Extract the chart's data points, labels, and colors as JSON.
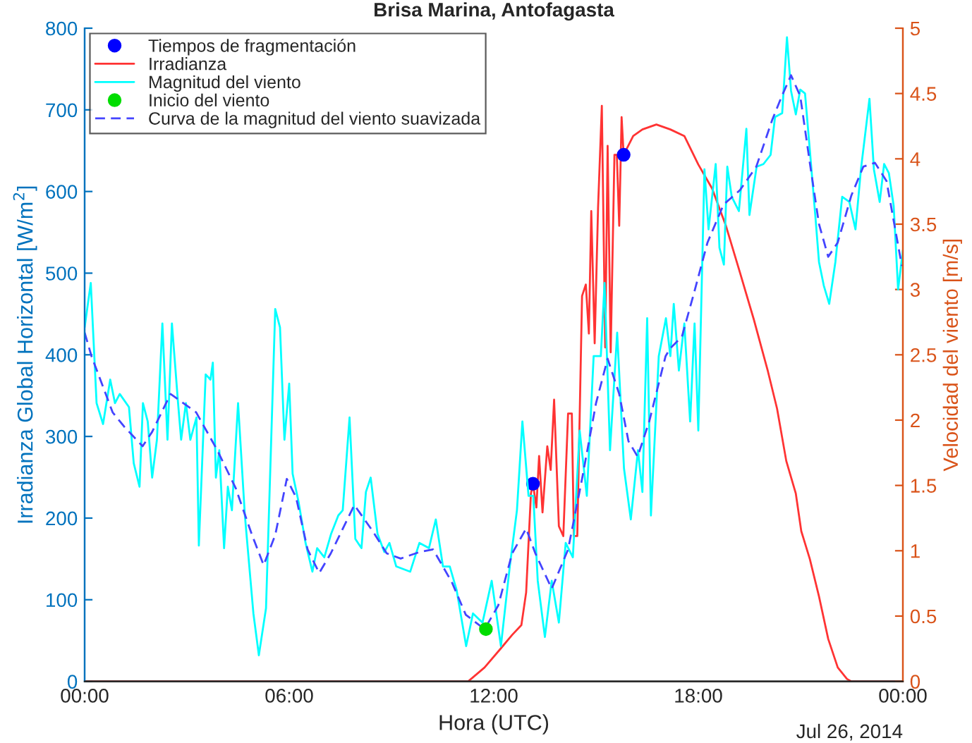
{
  "chart_data": {
    "type": "line",
    "title": "Brisa Marina, Antofagasta",
    "xlabel": "Hora (UTC)",
    "ylabel": "Irradianza Global Horizontal [W/m$^{2}$]",
    "y2label": "Velocidad del viento [m/s]",
    "xlim": [
      0,
      24
    ],
    "xticks": [
      {
        "value": 0,
        "label": "00:00"
      },
      {
        "value": 6,
        "label": "06:00"
      },
      {
        "value": 12,
        "label": "12:00"
      },
      {
        "value": 18,
        "label": "18:00"
      },
      {
        "value": 24,
        "label": "00:00"
      }
    ],
    "ylim": [
      0,
      800
    ],
    "yticks": [
      0,
      100,
      200,
      300,
      400,
      500,
      600,
      700,
      800
    ],
    "y2lim": [
      0,
      5
    ],
    "y2ticks": [
      0,
      0.5,
      1,
      1.5,
      2,
      2.5,
      3,
      3.5,
      4,
      4.5,
      5
    ],
    "grid": false,
    "legend": "top left",
    "annotations": [
      "Jul 26, 2014"
    ],
    "series": [
      {
        "name": "Tiempos de fragmentación",
        "type": "scatter",
        "axis": "y",
        "color": "#0000ff",
        "marker": "circle",
        "x": [
          13.15,
          15.81
        ],
        "values": [
          242,
          645
        ]
      },
      {
        "name": "Irradianza",
        "axis": "y",
        "color": "#ff3333",
        "line_style": "solid",
        "x": [
          0,
          11.25,
          11.73,
          12.2,
          12.54,
          12.81,
          12.95,
          13.09,
          13.15,
          13.25,
          13.33,
          13.43,
          13.57,
          13.67,
          13.77,
          13.91,
          14.04,
          14.18,
          14.29,
          14.35,
          14.45,
          14.59,
          14.7,
          14.79,
          14.86,
          14.96,
          15.06,
          15.17,
          15.27,
          15.34,
          15.43,
          15.54,
          15.61,
          15.68,
          15.75,
          15.81,
          16.09,
          16.36,
          16.77,
          17.18,
          17.59,
          18.0,
          18.4,
          18.81,
          19.22,
          19.63,
          20.04,
          20.31,
          20.58,
          20.86,
          21.02,
          21.27,
          21.54,
          21.81,
          22.09,
          22.36,
          22.49,
          24
        ],
        "values": [
          0,
          0,
          17,
          40,
          57,
          69,
          109,
          230,
          242,
          213,
          276,
          207,
          288,
          259,
          345,
          190,
          178,
          328,
          328,
          178,
          178,
          472,
          486,
          426,
          576,
          414,
          581,
          705,
          409,
          656,
          403,
          645,
          645,
          558,
          691,
          645,
          668,
          676,
          682,
          676,
          668,
          633,
          604,
          558,
          501,
          443,
          380,
          334,
          270,
          230,
          184,
          150,
          104,
          52,
          17,
          3,
          0,
          0
        ]
      },
      {
        "name": "Magnitud del viento",
        "axis": "y2",
        "color": "#00ffff",
        "line_style": "solid",
        "x": [
          0.0,
          0.18,
          0.35,
          0.54,
          0.75,
          0.89,
          1.03,
          1.3,
          1.44,
          1.61,
          1.71,
          1.85,
          1.98,
          2.12,
          2.28,
          2.43,
          2.56,
          2.74,
          2.83,
          2.97,
          3.1,
          3.28,
          3.35,
          3.55,
          3.69,
          3.76,
          3.85,
          3.95,
          4.09,
          4.2,
          4.32,
          4.5,
          4.7,
          4.95,
          5.11,
          5.32,
          5.59,
          5.73,
          5.86,
          6.0,
          6.1,
          6.27,
          6.48,
          6.68,
          6.82,
          7.03,
          7.23,
          7.44,
          7.57,
          7.77,
          7.94,
          8.12,
          8.25,
          8.39,
          8.59,
          8.79,
          8.94,
          9.14,
          9.55,
          9.82,
          10.1,
          10.3,
          10.51,
          10.71,
          10.91,
          11.19,
          11.39,
          11.67,
          11.94,
          12.21,
          12.47,
          12.68,
          12.84,
          13.02,
          13.16,
          13.29,
          13.5,
          13.7,
          13.91,
          14.11,
          14.32,
          14.52,
          14.73,
          14.93,
          15.14,
          15.25,
          15.41,
          15.62,
          15.82,
          16.02,
          16.23,
          16.36,
          16.5,
          16.61,
          16.84,
          17.05,
          17.18,
          17.28,
          17.43,
          17.59,
          17.76,
          17.89,
          18.0,
          18.18,
          18.3,
          18.51,
          18.62,
          18.75,
          18.85,
          18.98,
          19.19,
          19.41,
          19.5,
          19.71,
          19.91,
          20.12,
          20.25,
          20.46,
          20.6,
          20.72,
          20.86,
          20.99,
          21.13,
          21.27,
          21.43,
          21.54,
          21.68,
          21.84,
          22.02,
          22.22,
          22.43,
          22.61,
          22.77,
          23.02,
          23.15,
          23.32,
          23.45,
          23.59,
          23.73,
          23.86,
          24
        ],
        "values": [
          2.71,
          3.05,
          2.13,
          1.97,
          2.31,
          2.13,
          2.2,
          2.1,
          1.67,
          1.49,
          2.13,
          1.99,
          1.56,
          1.85,
          2.74,
          1.85,
          2.74,
          2.13,
          1.85,
          2.13,
          1.85,
          2.02,
          1.04,
          2.35,
          2.31,
          2.44,
          1.56,
          1.77,
          1.02,
          1.49,
          1.31,
          2.13,
          1.27,
          0.52,
          0.2,
          0.56,
          2.85,
          2.71,
          1.85,
          2.28,
          1.59,
          1.38,
          1.06,
          0.84,
          1.02,
          0.95,
          1.13,
          1.27,
          1.31,
          2.02,
          1.09,
          1.02,
          1.45,
          1.56,
          1.13,
          0.99,
          1.06,
          0.88,
          0.84,
          1.06,
          1.02,
          1.24,
          0.88,
          0.88,
          0.7,
          0.27,
          0.52,
          0.45,
          0.77,
          0.27,
          0.88,
          1.31,
          1.99,
          1.42,
          1.42,
          0.77,
          0.34,
          0.77,
          0.45,
          1.06,
          0.95,
          1.92,
          1.42,
          2.49,
          2.49,
          3.05,
          1.77,
          2.67,
          1.63,
          1.24,
          1.77,
          1.45,
          2.78,
          1.27,
          2.49,
          2.78,
          2.49,
          2.89,
          2.38,
          2.74,
          1.99,
          2.74,
          1.92,
          3.92,
          3.46,
          3.96,
          3.32,
          3.19,
          3.94,
          3.71,
          3.6,
          4.23,
          3.57,
          3.94,
          3.96,
          4.03,
          4.32,
          4.35,
          4.93,
          4.52,
          4.34,
          4.53,
          4.5,
          4.07,
          3.57,
          3.21,
          3.03,
          2.89,
          3.21,
          3.71,
          3.67,
          3.46,
          3.92,
          4.46,
          3.92,
          3.67,
          3.96,
          3.89,
          3.64,
          3.0,
          3.3
        ]
      },
      {
        "name": "Inicio del viento",
        "type": "scatter",
        "axis": "y2",
        "color": "#00dd00",
        "marker": "circle",
        "x": [
          11.77
        ],
        "values": [
          0.4
        ]
      },
      {
        "name": "Curva de la magnitud del viento suavizada",
        "axis": "y2",
        "color": "#4444ff",
        "line_style": "dashed",
        "x": [
          0,
          0.2,
          0.82,
          1.16,
          1.7,
          1.98,
          2.52,
          3.27,
          3.89,
          4.43,
          4.91,
          5.25,
          5.59,
          5.93,
          6.2,
          6.54,
          6.88,
          7.22,
          7.91,
          8.45,
          8.86,
          9.27,
          9.82,
          10.22,
          10.77,
          11.18,
          11.73,
          12.13,
          12.54,
          12.95,
          13.22,
          13.7,
          14.18,
          14.59,
          15.0,
          15.34,
          15.68,
          15.95,
          16.22,
          16.56,
          17.04,
          17.18,
          17.52,
          17.86,
          18.27,
          18.74,
          19.22,
          19.7,
          20.17,
          20.45,
          20.72,
          20.99,
          21.27,
          21.54,
          21.81,
          22.09,
          22.49,
          22.84,
          23.18,
          23.52,
          23.97
        ],
        "values": [
          2.67,
          2.49,
          2.06,
          1.95,
          1.8,
          1.91,
          2.2,
          2.06,
          1.77,
          1.48,
          1.12,
          0.89,
          1.12,
          1.55,
          1.41,
          1.01,
          0.83,
          0.98,
          1.35,
          1.15,
          0.98,
          0.94,
          0.99,
          1.01,
          0.76,
          0.51,
          0.4,
          0.58,
          0.98,
          1.17,
          0.98,
          0.71,
          1.01,
          1.55,
          2.13,
          2.47,
          2.2,
          1.84,
          1.72,
          1.99,
          2.49,
          2.55,
          2.64,
          2.96,
          3.36,
          3.65,
          3.76,
          3.94,
          4.3,
          4.48,
          4.64,
          4.48,
          3.97,
          3.5,
          3.25,
          3.36,
          3.72,
          3.94,
          3.97,
          3.83,
          3.18
        ]
      }
    ]
  }
}
